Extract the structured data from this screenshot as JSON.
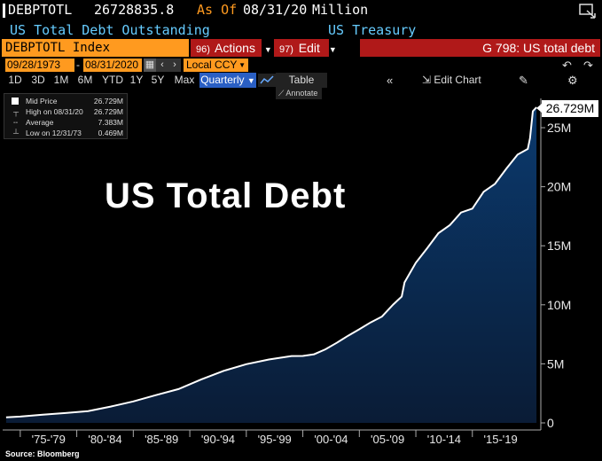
{
  "header": {
    "ticker": "DEBPTOTL",
    "value": "26728835.8",
    "as_of_label": "As Of",
    "as_of_date": "08/31/20",
    "unit": "Million",
    "description": "US Total Debt Outstanding",
    "source_name": "US Treasury"
  },
  "toolbar": {
    "index_label": "DEBPTOTL Index",
    "actions": {
      "num": "96)",
      "label": "Actions"
    },
    "edit": {
      "num": "97)",
      "label": "Edit"
    },
    "function_label": "G 798: US total debt"
  },
  "date_range": {
    "start": "09/28/1973",
    "separator": "-",
    "end": "08/31/2020",
    "currency": "Local CCY"
  },
  "periods": [
    "1D",
    "3D",
    "1M",
    "6M",
    "YTD",
    "1Y",
    "5Y",
    "Max"
  ],
  "frequency": "Quarterly",
  "table_label": "Table",
  "annotate_label": "Annotate",
  "edit_chart_label": "Edit Chart",
  "legend": [
    {
      "label": "Mid Price",
      "value": "26.729M"
    },
    {
      "label": "High on 08/31/20",
      "value": "26.729M"
    },
    {
      "label": "Average",
      "value": "7.383M"
    },
    {
      "label": "Low on 12/31/73",
      "value": "0.469M"
    }
  ],
  "overlay_title": "US Total Debt",
  "last_value_label": "26.729M",
  "source": "Source: Bloomberg",
  "colors": {
    "orange": "#ff9a1f",
    "red_bar": "#b01919",
    "cyan_text": "#66ccff",
    "area_fill_top": "#0b3a6e",
    "area_fill_bottom": "#0a1c36",
    "line": "#ffffff"
  },
  "chart_data": {
    "type": "area",
    "y_unit": "Million (displayed as M = trillions of USD millions)",
    "ylim": [
      0,
      27
    ],
    "yticks": [
      0,
      5,
      10,
      15,
      20,
      25
    ],
    "ytick_labels": [
      "0",
      "5M",
      "10M",
      "15M",
      "20M",
      "25M"
    ],
    "xtick_labels": [
      "'75-'79",
      "'80-'84",
      "'85-'89",
      "'90-'94",
      "'95-'99",
      "'00-'04",
      "'05-'09",
      "'10-'14",
      "'15-'19"
    ],
    "x": [
      1973.75,
      1975,
      1977,
      1979,
      1981,
      1983,
      1985,
      1987,
      1989,
      1991,
      1993,
      1995,
      1997,
      1999,
      2000,
      2001,
      2002,
      2003,
      2004,
      2005,
      2006,
      2007,
      2008,
      2008.75,
      2009,
      2010,
      2011,
      2012,
      2013,
      2014,
      2015,
      2016,
      2017,
      2018,
      2019,
      2019.9,
      2020.1,
      2020.35,
      2020.67
    ],
    "values": [
      0.47,
      0.53,
      0.7,
      0.83,
      1.0,
      1.38,
      1.82,
      2.35,
      2.86,
      3.67,
      4.41,
      4.97,
      5.37,
      5.66,
      5.67,
      5.81,
      6.23,
      6.78,
      7.38,
      7.93,
      8.51,
      9.0,
      10.02,
      10.7,
      11.9,
      13.56,
      14.79,
      16.07,
      16.74,
      17.82,
      18.15,
      19.57,
      20.24,
      21.52,
      22.72,
      23.2,
      24.1,
      26.4,
      26.729
    ],
    "grid": false,
    "legend_position": "top-left"
  }
}
